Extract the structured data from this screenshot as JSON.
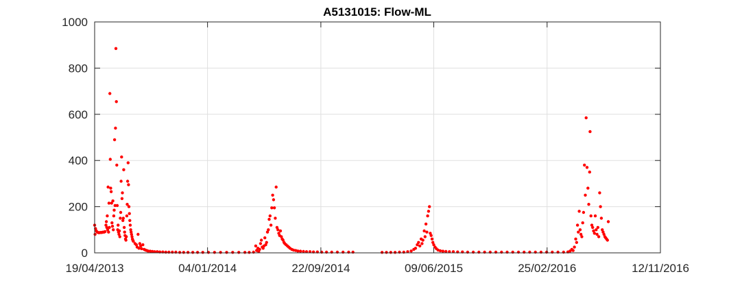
{
  "chart_data": {
    "type": "scatter",
    "title": "A5131015: Flow-ML",
    "xlabel": "",
    "ylabel": "",
    "x_axis_type": "date",
    "xlim": [
      "2013-04-19",
      "2016-11-12"
    ],
    "ylim": [
      0,
      1000
    ],
    "x_ticks": [
      {
        "date": "2013-04-19",
        "label": "19/04/2013"
      },
      {
        "date": "2014-01-04",
        "label": "04/01/2014"
      },
      {
        "date": "2014-09-22",
        "label": "22/09/2014"
      },
      {
        "date": "2015-06-09",
        "label": "09/06/2015"
      },
      {
        "date": "2016-02-25",
        "label": "25/02/2016"
      },
      {
        "date": "2016-11-12",
        "label": "12/11/2016"
      }
    ],
    "y_ticks": [
      0,
      200,
      400,
      600,
      800,
      1000
    ],
    "grid": true,
    "marker_color": "#ff0000",
    "series": [
      {
        "points": [
          [
            "2013-04-19",
            120
          ],
          [
            "2013-04-20",
            80
          ],
          [
            "2013-04-21",
            105
          ],
          [
            "2013-04-23",
            95
          ],
          [
            "2013-04-25",
            90
          ],
          [
            "2013-04-27",
            88
          ],
          [
            "2013-04-29",
            87
          ],
          [
            "2013-05-01",
            88
          ],
          [
            "2013-05-03",
            88
          ],
          [
            "2013-05-05",
            88
          ],
          [
            "2013-05-07",
            89
          ],
          [
            "2013-05-09",
            90
          ],
          [
            "2013-05-11",
            90
          ],
          [
            "2013-05-13",
            92
          ],
          [
            "2013-05-15",
            120
          ],
          [
            "2013-05-16",
            135
          ],
          [
            "2013-05-17",
            110
          ],
          [
            "2013-05-18",
            160
          ],
          [
            "2013-05-19",
            100
          ],
          [
            "2013-05-20",
            285
          ],
          [
            "2013-05-21",
            90
          ],
          [
            "2013-05-22",
            215
          ],
          [
            "2013-05-23",
            110
          ],
          [
            "2013-05-24",
            690
          ],
          [
            "2013-05-25",
            405
          ],
          [
            "2013-05-26",
            280
          ],
          [
            "2013-05-27",
            265
          ],
          [
            "2013-05-28",
            215
          ],
          [
            "2013-05-29",
            130
          ],
          [
            "2013-05-30",
            115
          ],
          [
            "2013-05-31",
            225
          ],
          [
            "2013-06-01",
            100
          ],
          [
            "2013-06-02",
            160
          ],
          [
            "2013-06-03",
            185
          ],
          [
            "2013-06-04",
            490
          ],
          [
            "2013-06-05",
            205
          ],
          [
            "2013-06-06",
            540
          ],
          [
            "2013-06-07",
            885
          ],
          [
            "2013-06-08",
            655
          ],
          [
            "2013-06-09",
            380
          ],
          [
            "2013-06-10",
            205
          ],
          [
            "2013-06-11",
            100
          ],
          [
            "2013-06-12",
            120
          ],
          [
            "2013-06-13",
            90
          ],
          [
            "2013-06-14",
            80
          ],
          [
            "2013-06-15",
            95
          ],
          [
            "2013-06-16",
            70
          ],
          [
            "2013-06-17",
            150
          ],
          [
            "2013-06-18",
            175
          ],
          [
            "2013-06-19",
            310
          ],
          [
            "2013-06-20",
            415
          ],
          [
            "2013-06-21",
            235
          ],
          [
            "2013-06-22",
            260
          ],
          [
            "2013-06-23",
            140
          ],
          [
            "2013-06-24",
            150
          ],
          [
            "2013-06-25",
            360
          ],
          [
            "2013-06-26",
            110
          ],
          [
            "2013-06-27",
            90
          ],
          [
            "2013-06-28",
            75
          ],
          [
            "2013-06-29",
            60
          ],
          [
            "2013-06-30",
            55
          ],
          [
            "2013-07-01",
            70
          ],
          [
            "2013-07-02",
            160
          ],
          [
            "2013-07-03",
            210
          ],
          [
            "2013-07-04",
            310
          ],
          [
            "2013-07-05",
            390
          ],
          [
            "2013-07-06",
            295
          ],
          [
            "2013-07-07",
            200
          ],
          [
            "2013-07-08",
            170
          ],
          [
            "2013-07-09",
            140
          ],
          [
            "2013-07-10",
            120
          ],
          [
            "2013-07-11",
            100
          ],
          [
            "2013-07-12",
            90
          ],
          [
            "2013-07-13",
            80
          ],
          [
            "2013-07-14",
            70
          ],
          [
            "2013-07-15",
            60
          ],
          [
            "2013-07-16",
            55
          ],
          [
            "2013-07-17",
            50
          ],
          [
            "2013-07-21",
            40
          ],
          [
            "2013-07-24",
            35
          ],
          [
            "2013-07-26",
            25
          ],
          [
            "2013-07-28",
            80
          ],
          [
            "2013-07-30",
            20
          ],
          [
            "2013-08-01",
            40
          ],
          [
            "2013-08-03",
            30
          ],
          [
            "2013-08-05",
            18
          ],
          [
            "2013-08-08",
            35
          ],
          [
            "2013-08-11",
            15
          ],
          [
            "2013-08-14",
            12
          ],
          [
            "2013-08-17",
            10
          ],
          [
            "2013-08-20",
            8
          ],
          [
            "2013-08-25",
            7
          ],
          [
            "2013-08-30",
            6
          ],
          [
            "2013-09-04",
            5
          ],
          [
            "2013-09-10",
            5
          ],
          [
            "2013-09-16",
            4
          ],
          [
            "2013-09-23",
            4
          ],
          [
            "2013-09-30",
            3
          ],
          [
            "2013-10-07",
            3
          ],
          [
            "2013-10-15",
            3
          ],
          [
            "2013-10-23",
            3
          ],
          [
            "2013-11-01",
            2
          ],
          [
            "2013-11-10",
            2
          ],
          [
            "2013-11-20",
            2
          ],
          [
            "2013-12-01",
            2
          ],
          [
            "2013-12-12",
            2
          ],
          [
            "2013-12-24",
            2
          ],
          [
            "2014-01-06",
            2
          ],
          [
            "2014-01-20",
            2
          ],
          [
            "2014-02-03",
            2
          ],
          [
            "2014-02-17",
            2
          ],
          [
            "2014-03-03",
            2
          ],
          [
            "2014-03-17",
            2
          ],
          [
            "2014-03-31",
            2
          ],
          [
            "2014-04-10",
            2
          ],
          [
            "2014-04-20",
            3
          ],
          [
            "2014-04-25",
            30
          ],
          [
            "2014-04-27",
            10
          ],
          [
            "2014-04-30",
            20
          ],
          [
            "2014-05-02",
            5
          ],
          [
            "2014-05-04",
            15
          ],
          [
            "2014-05-06",
            40
          ],
          [
            "2014-05-08",
            55
          ],
          [
            "2014-05-10",
            25
          ],
          [
            "2014-05-12",
            20
          ],
          [
            "2014-05-14",
            30
          ],
          [
            "2014-05-16",
            65
          ],
          [
            "2014-05-18",
            35
          ],
          [
            "2014-05-20",
            45
          ],
          [
            "2014-05-22",
            90
          ],
          [
            "2014-05-24",
            100
          ],
          [
            "2014-05-26",
            145
          ],
          [
            "2014-05-28",
            160
          ],
          [
            "2014-05-30",
            120
          ],
          [
            "2014-06-01",
            195
          ],
          [
            "2014-06-03",
            250
          ],
          [
            "2014-06-05",
            230
          ],
          [
            "2014-06-07",
            195
          ],
          [
            "2014-06-09",
            150
          ],
          [
            "2014-06-11",
            285
          ],
          [
            "2014-06-13",
            110
          ],
          [
            "2014-06-15",
            100
          ],
          [
            "2014-06-17",
            85
          ],
          [
            "2014-06-19",
            75
          ],
          [
            "2014-06-21",
            95
          ],
          [
            "2014-06-23",
            70
          ],
          [
            "2014-06-25",
            60
          ],
          [
            "2014-06-27",
            55
          ],
          [
            "2014-06-29",
            45
          ],
          [
            "2014-07-01",
            40
          ],
          [
            "2014-07-04",
            35
          ],
          [
            "2014-07-07",
            30
          ],
          [
            "2014-07-10",
            25
          ],
          [
            "2014-07-13",
            20
          ],
          [
            "2014-07-17",
            15
          ],
          [
            "2014-07-21",
            12
          ],
          [
            "2014-07-26",
            10
          ],
          [
            "2014-07-31",
            8
          ],
          [
            "2014-08-06",
            7
          ],
          [
            "2014-08-13",
            6
          ],
          [
            "2014-08-20",
            5
          ],
          [
            "2014-08-28",
            5
          ],
          [
            "2014-09-05",
            4
          ],
          [
            "2014-09-14",
            4
          ],
          [
            "2014-09-24",
            3
          ],
          [
            "2014-10-05",
            3
          ],
          [
            "2014-10-17",
            3
          ],
          [
            "2014-10-30",
            3
          ],
          [
            "2014-11-12",
            3
          ],
          [
            "2014-11-25",
            3
          ],
          [
            "2014-12-05",
            3
          ],
          [
            "2015-02-10",
            2
          ],
          [
            "2015-02-20",
            2
          ],
          [
            "2015-03-02",
            2
          ],
          [
            "2015-03-12",
            2
          ],
          [
            "2015-03-22",
            3
          ],
          [
            "2015-04-01",
            3
          ],
          [
            "2015-04-10",
            5
          ],
          [
            "2015-04-18",
            8
          ],
          [
            "2015-04-24",
            15
          ],
          [
            "2015-04-28",
            20
          ],
          [
            "2015-05-02",
            35
          ],
          [
            "2015-05-05",
            45
          ],
          [
            "2015-05-08",
            30
          ],
          [
            "2015-05-11",
            60
          ],
          [
            "2015-05-13",
            40
          ],
          [
            "2015-05-15",
            55
          ],
          [
            "2015-05-18",
            95
          ],
          [
            "2015-05-20",
            70
          ],
          [
            "2015-05-22",
            125
          ],
          [
            "2015-05-24",
            90
          ],
          [
            "2015-05-26",
            160
          ],
          [
            "2015-05-28",
            180
          ],
          [
            "2015-05-30",
            200
          ],
          [
            "2015-06-01",
            85
          ],
          [
            "2015-06-03",
            75
          ],
          [
            "2015-06-05",
            60
          ],
          [
            "2015-06-07",
            45
          ],
          [
            "2015-06-09",
            35
          ],
          [
            "2015-06-12",
            25
          ],
          [
            "2015-06-15",
            18
          ],
          [
            "2015-06-19",
            12
          ],
          [
            "2015-06-24",
            9
          ],
          [
            "2015-06-30",
            7
          ],
          [
            "2015-07-07",
            6
          ],
          [
            "2015-07-15",
            5
          ],
          [
            "2015-07-24",
            5
          ],
          [
            "2015-08-03",
            4
          ],
          [
            "2015-08-14",
            4
          ],
          [
            "2015-08-26",
            3
          ],
          [
            "2015-09-08",
            3
          ],
          [
            "2015-09-21",
            3
          ],
          [
            "2015-10-04",
            3
          ],
          [
            "2015-10-17",
            3
          ],
          [
            "2015-10-30",
            3
          ],
          [
            "2015-11-12",
            3
          ],
          [
            "2015-11-25",
            3
          ],
          [
            "2015-12-08",
            3
          ],
          [
            "2015-12-21",
            3
          ],
          [
            "2016-01-03",
            3
          ],
          [
            "2016-01-16",
            3
          ],
          [
            "2016-01-29",
            3
          ],
          [
            "2016-02-11",
            3
          ],
          [
            "2016-02-24",
            3
          ],
          [
            "2016-03-08",
            3
          ],
          [
            "2016-03-21",
            3
          ],
          [
            "2016-04-03",
            3
          ],
          [
            "2016-04-13",
            4
          ],
          [
            "2016-04-18",
            8
          ],
          [
            "2016-04-22",
            15
          ],
          [
            "2016-04-25",
            10
          ],
          [
            "2016-04-28",
            25
          ],
          [
            "2016-05-01",
            60
          ],
          [
            "2016-05-03",
            45
          ],
          [
            "2016-05-05",
            120
          ],
          [
            "2016-05-07",
            90
          ],
          [
            "2016-05-09",
            180
          ],
          [
            "2016-05-11",
            100
          ],
          [
            "2016-05-13",
            80
          ],
          [
            "2016-05-15",
            70
          ],
          [
            "2016-05-17",
            130
          ],
          [
            "2016-05-19",
            175
          ],
          [
            "2016-05-21",
            380
          ],
          [
            "2016-05-23",
            250
          ],
          [
            "2016-05-25",
            585
          ],
          [
            "2016-05-27",
            370
          ],
          [
            "2016-05-29",
            280
          ],
          [
            "2016-05-31",
            210
          ],
          [
            "2016-06-02",
            350
          ],
          [
            "2016-06-03",
            525
          ],
          [
            "2016-06-05",
            160
          ],
          [
            "2016-06-07",
            120
          ],
          [
            "2016-06-09",
            110
          ],
          [
            "2016-06-11",
            95
          ],
          [
            "2016-06-13",
            85
          ],
          [
            "2016-06-15",
            160
          ],
          [
            "2016-06-17",
            100
          ],
          [
            "2016-06-19",
            80
          ],
          [
            "2016-06-21",
            110
          ],
          [
            "2016-06-23",
            70
          ],
          [
            "2016-06-25",
            260
          ],
          [
            "2016-06-27",
            200
          ],
          [
            "2016-06-29",
            150
          ],
          [
            "2016-07-01",
            100
          ],
          [
            "2016-07-03",
            90
          ],
          [
            "2016-07-05",
            80
          ],
          [
            "2016-07-07",
            70
          ],
          [
            "2016-07-09",
            65
          ],
          [
            "2016-07-11",
            60
          ],
          [
            "2016-07-13",
            55
          ],
          [
            "2016-07-15",
            135
          ]
        ]
      }
    ]
  }
}
